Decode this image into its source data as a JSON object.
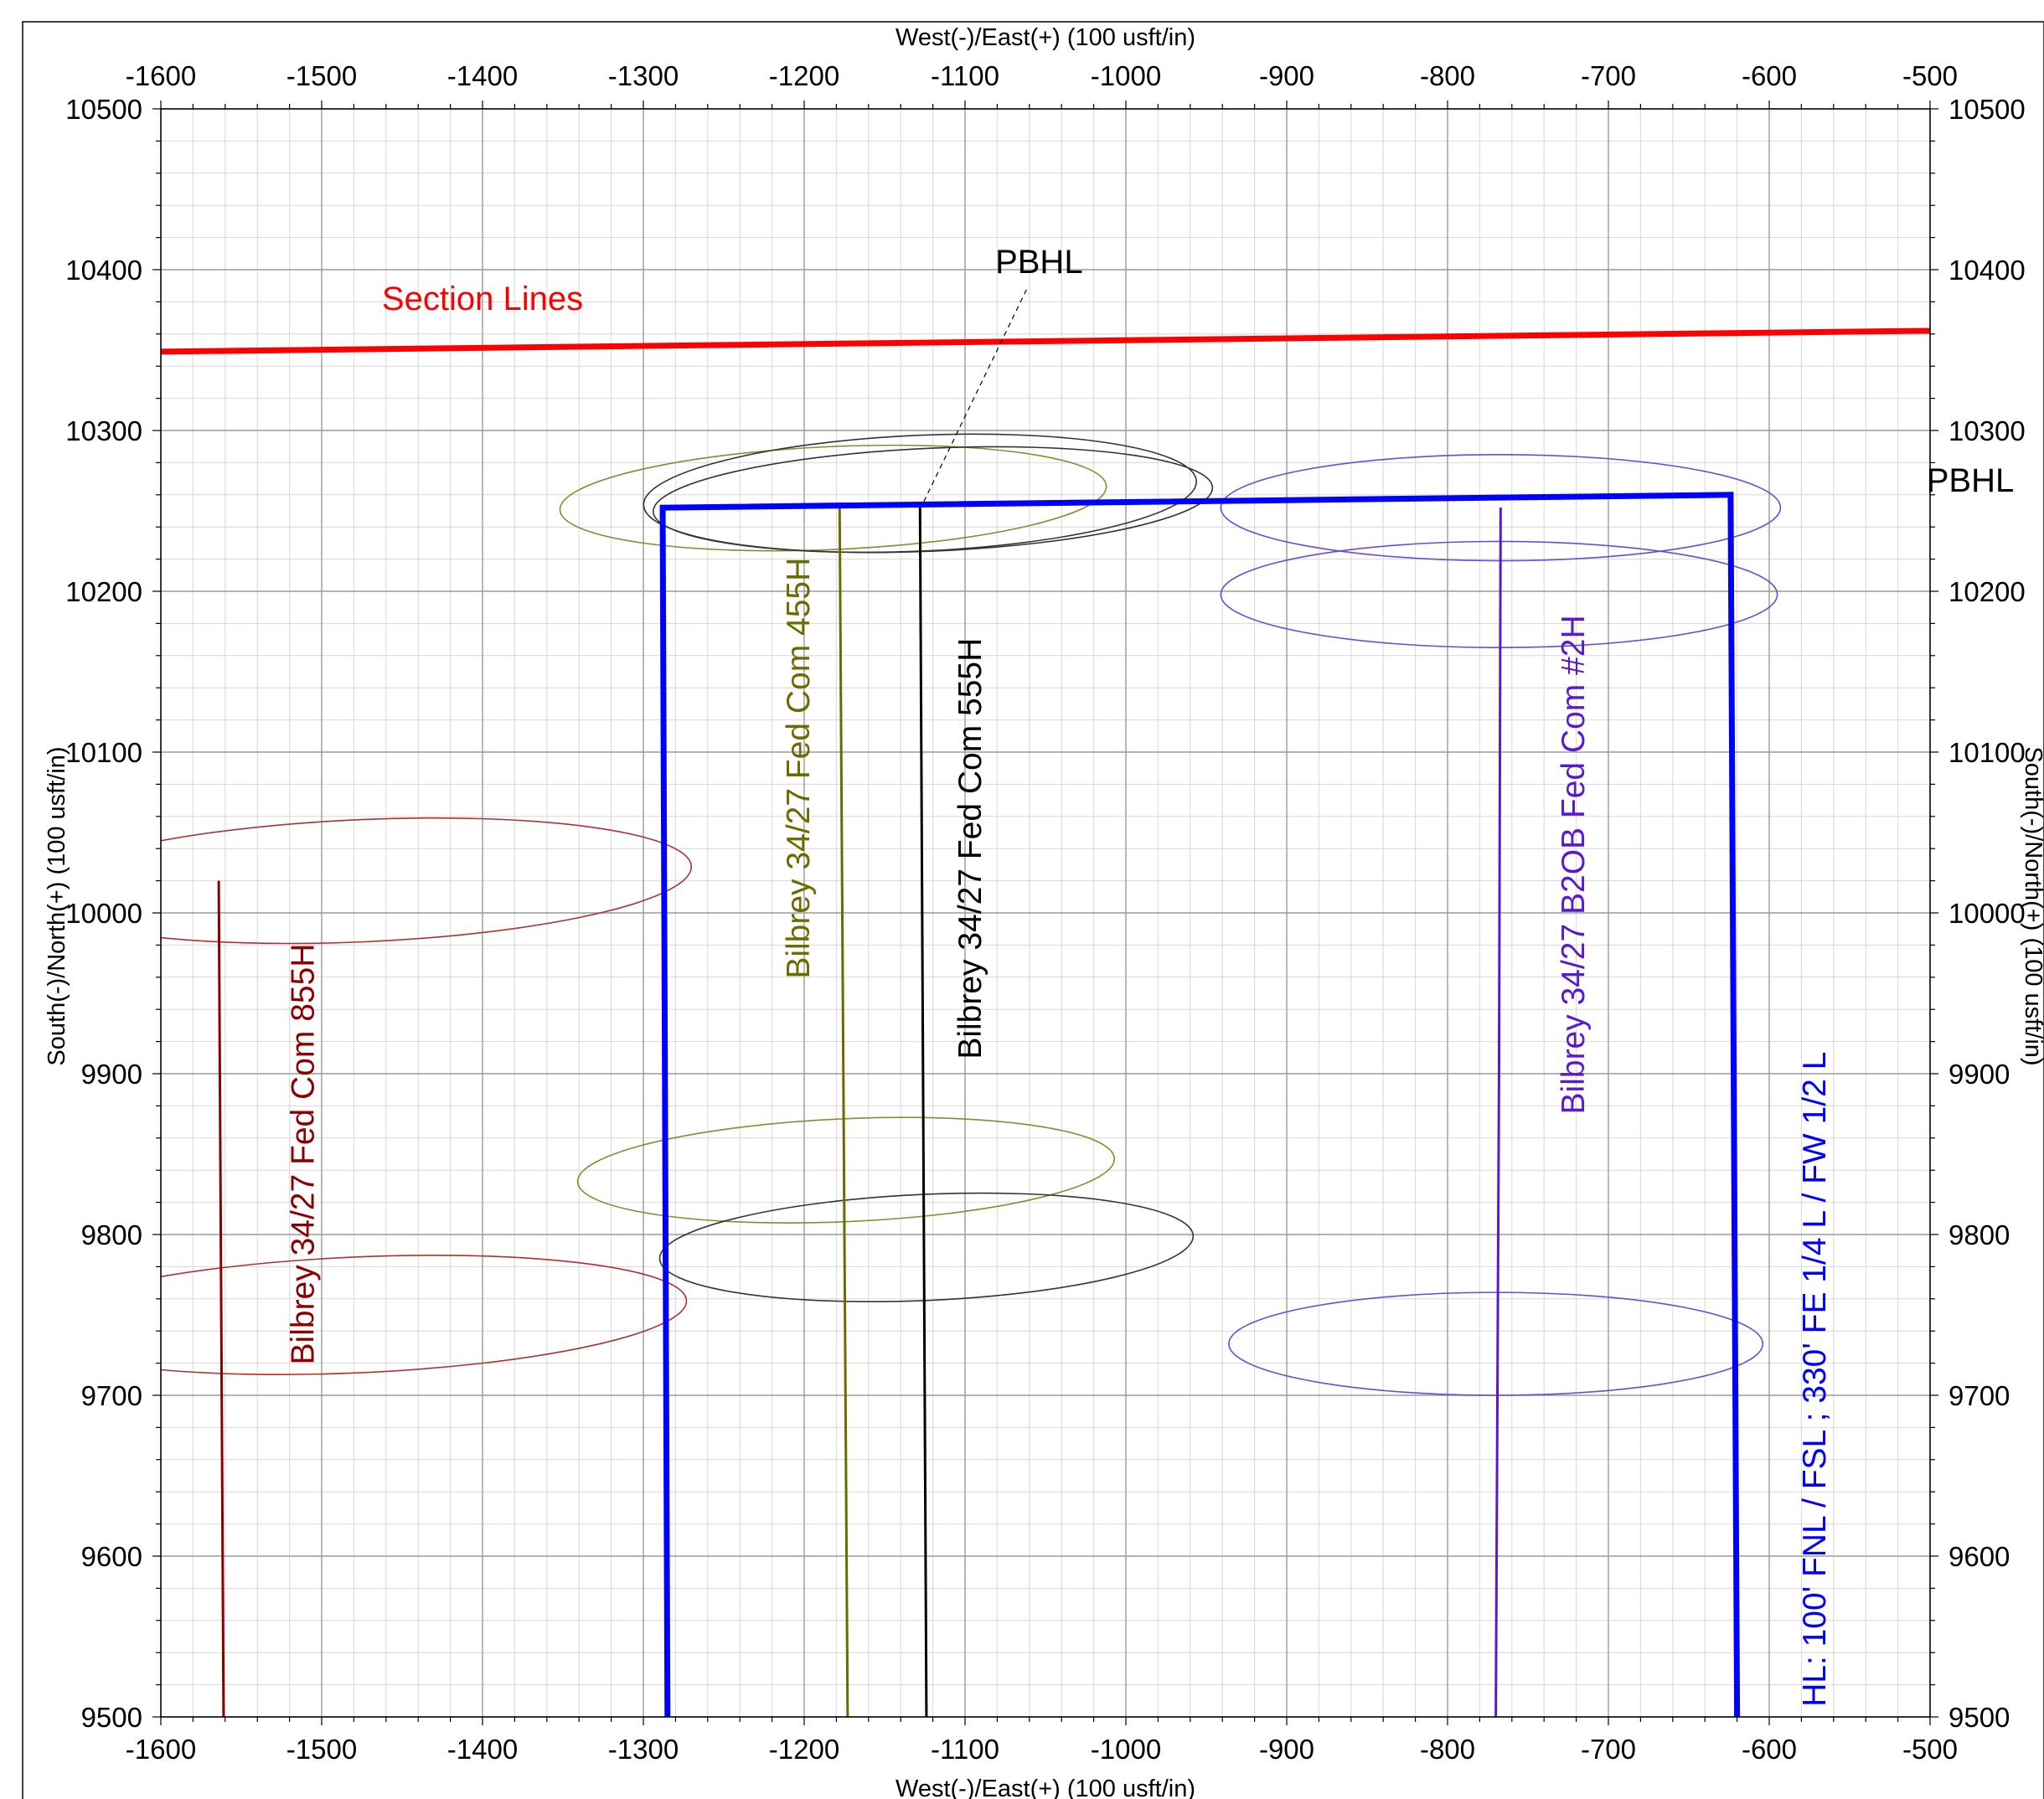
{
  "chart_data": {
    "type": "line",
    "x_axis_title_top": "West(-)/East(+) (100 usft/in)",
    "x_axis_title_bottom": "West(-)/East(+) (100 usft/in)",
    "y_axis_title_left": "South(-)/North(+) (100 usft/in)",
    "y_axis_title_right": "South(-)/North(+) (100 usft/in)",
    "xlim": [
      -1600,
      -500
    ],
    "ylim": [
      9500,
      10500
    ],
    "x_ticks": [
      -1600,
      -1500,
      -1400,
      -1300,
      -1200,
      -1100,
      -1000,
      -900,
      -800,
      -700,
      -600,
      -500
    ],
    "y_ticks": [
      9500,
      9600,
      9700,
      9800,
      9900,
      10000,
      10100,
      10200,
      10300,
      10400,
      10500
    ],
    "grid": true,
    "series": [
      {
        "name": "Bilbrey 34/27 Fed Com 855H",
        "color": "#8b0000",
        "x": [
          -1564,
          -1561
        ],
        "y": [
          10020,
          9500
        ]
      },
      {
        "name": "Bilbrey 34/27 Fed Com 455H",
        "color": "#6b6b00",
        "x": [
          -1178,
          -1173
        ],
        "y": [
          10255,
          9500
        ]
      },
      {
        "name": "Bilbrey 34/27 Fed Com 555H",
        "color": "#000000",
        "x": [
          -1128,
          -1124
        ],
        "y": [
          10255,
          9500
        ]
      },
      {
        "name": "Bilbrey 34/27 B2OB Fed Com #2H",
        "color": "#5a1acc",
        "x": [
          -767,
          -768,
          -770
        ],
        "y": [
          10252,
          9900,
          9500
        ]
      },
      {
        "name": "HL: 100' FNL / FSL ; 330' FE 1/4 L / FW 1/2 L",
        "color": "#0000ff",
        "x": [
          -1285,
          -1288,
          -624,
          -620
        ],
        "y": [
          9500,
          10252,
          10260,
          9500
        ]
      },
      {
        "name": "Section Lines",
        "color": "#ff0000",
        "x": [
          -1600,
          -500
        ],
        "y": [
          10349,
          10362
        ]
      }
    ],
    "ellipses": [
      {
        "series": "Bilbrey 34/27 Fed Com 855H",
        "color": "#b03030",
        "center": [
          -1475,
          10020
        ],
        "rx": 205,
        "ry": 38,
        "tilt_deg": -2.5
      },
      {
        "series": "Bilbrey 34/27 Fed Com 855H",
        "color": "#b03030",
        "center": [
          -1478,
          9750
        ],
        "rx": 205,
        "ry": 36,
        "tilt_deg": -2.5
      },
      {
        "series": "Bilbrey 34/27 Fed Com 455H",
        "color": "#8a8a30",
        "center": [
          -1182,
          10258
        ],
        "rx": 170,
        "ry": 32,
        "tilt_deg": -2.5
      },
      {
        "series": "Bilbrey 34/27 Fed Com 455H",
        "color": "#8a8a30",
        "center": [
          -1174,
          9840
        ],
        "rx": 167,
        "ry": 32,
        "tilt_deg": -2.5
      },
      {
        "series": "Bilbrey 34/27 Fed Com 555H",
        "color": "#333333",
        "center": [
          -1120,
          10257
        ],
        "rx": 174,
        "ry": 32,
        "tilt_deg": -2.5
      },
      {
        "series": "Bilbrey 34/27 Fed Com 555H",
        "color": "#333333",
        "center": [
          -1128,
          10261
        ],
        "rx": 172,
        "ry": 36,
        "tilt_deg": -2.5
      },
      {
        "series": "Bilbrey 34/27 Fed Com 555H",
        "color": "#333333",
        "center": [
          -1124,
          9792
        ],
        "rx": 166,
        "ry": 33,
        "tilt_deg": -2.5
      },
      {
        "series": "Bilbrey 34/27 B2OB Fed Com #2H",
        "color": "#6a4ad8",
        "center": [
          -767,
          10252
        ],
        "rx": 174,
        "ry": 33,
        "tilt_deg": 0
      },
      {
        "series": "Bilbrey 34/27 B2OB Fed Com #2H",
        "color": "#6a4ad8",
        "center": [
          -768,
          10198
        ],
        "rx": 173,
        "ry": 33,
        "tilt_deg": 0
      },
      {
        "series": "Bilbrey 34/27 B2OB Fed Com #2H",
        "color": "#6a4ad8",
        "center": [
          -770,
          9732
        ],
        "rx": 166,
        "ry": 32,
        "tilt_deg": 0
      }
    ],
    "annotations": [
      {
        "text": "Section Lines",
        "color": "#ff0000",
        "x": -1400,
        "y": 10375,
        "rotate": 0
      },
      {
        "text": "PBHL",
        "color": "#000000",
        "x": -1054,
        "y": 10398,
        "rotate": 0,
        "leader_to": [
          -1126,
          10255
        ]
      },
      {
        "text": "PBHL",
        "color": "#000000",
        "x": -475,
        "y": 10262,
        "rotate": 0
      },
      {
        "text": "Bilbrey 34/27 Fed Com 855H",
        "color": "#8b0000",
        "x": -1505,
        "y": 9850,
        "rotate": -90
      },
      {
        "text": "Bilbrey 34/27 Fed Com 455H",
        "color": "#6b6b00",
        "x": -1197,
        "y": 10090,
        "rotate": -90
      },
      {
        "text": "Bilbrey 34/27 Fed Com 555H",
        "color": "#000000",
        "x": -1090,
        "y": 10040,
        "rotate": -90
      },
      {
        "text": "Bilbrey 34/27 B2OB Fed Com #2H",
        "color": "#5a1acc",
        "x": -715,
        "y": 10030,
        "rotate": -90
      },
      {
        "text": "HL: 100' FNL / FSL ; 330' FE 1/4 L / FW 1/2 L",
        "color": "#0000ff",
        "x": -565,
        "y": 9710,
        "rotate": -90
      }
    ]
  }
}
